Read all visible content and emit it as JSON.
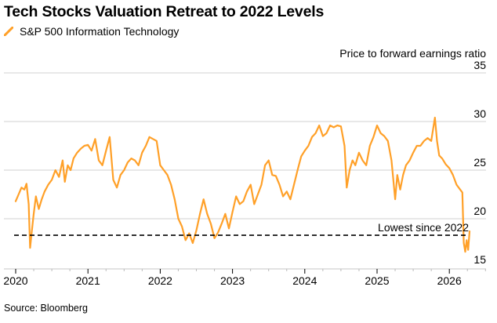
{
  "title": "Tech Stocks Valuation Retreat to 2022 Levels",
  "legend": {
    "label": "S&P 500 Information Technology",
    "color": "#ffa028"
  },
  "source": "Source: Bloomberg",
  "chart_data": {
    "type": "line",
    "title": "Tech Stocks Valuation Retreat to 2022 Levels",
    "xlabel": "",
    "ylabel": "Price to forward earnings ratio",
    "xlim": [
      2020.0,
      2026.55
    ],
    "ylim": [
      15,
      35
    ],
    "x_ticks": [
      2020,
      2021,
      2022,
      2023,
      2024,
      2025,
      2026
    ],
    "x_tick_labels": [
      "2020",
      "2021",
      "2022",
      "2023",
      "2024",
      "2025",
      "2026"
    ],
    "y_ticks": [
      15,
      20,
      25,
      30,
      35
    ],
    "y_tick_labels": [
      "15",
      "20",
      "25",
      "30",
      "35"
    ],
    "grid": true,
    "legend_position": "top-left",
    "annotations": [
      {
        "type": "hline",
        "y": 18.3,
        "style": "dashed",
        "label": "Lowest since 2022"
      }
    ],
    "series": [
      {
        "name": "S&P 500 Information Technology",
        "color": "#ffa028",
        "x": [
          2020.0,
          2020.04,
          2020.08,
          2020.12,
          2020.15,
          2020.18,
          2020.2,
          2020.22,
          2020.25,
          2020.28,
          2020.32,
          2020.36,
          2020.4,
          2020.45,
          2020.5,
          2020.55,
          2020.6,
          2020.65,
          2020.68,
          2020.72,
          2020.76,
          2020.8,
          2020.85,
          2020.9,
          2020.95,
          2021.0,
          2021.05,
          2021.1,
          2021.15,
          2021.2,
          2021.25,
          2021.3,
          2021.35,
          2021.4,
          2021.45,
          2021.5,
          2021.55,
          2021.6,
          2021.65,
          2021.7,
          2021.75,
          2021.8,
          2021.85,
          2021.9,
          2021.95,
          2022.0,
          2022.05,
          2022.1,
          2022.15,
          2022.2,
          2022.25,
          2022.3,
          2022.35,
          2022.4,
          2022.45,
          2022.5,
          2022.55,
          2022.6,
          2022.65,
          2022.7,
          2022.75,
          2022.8,
          2022.85,
          2022.9,
          2022.95,
          2023.0,
          2023.05,
          2023.1,
          2023.15,
          2023.2,
          2023.25,
          2023.3,
          2023.35,
          2023.4,
          2023.45,
          2023.5,
          2023.55,
          2023.6,
          2023.65,
          2023.7,
          2023.75,
          2023.8,
          2023.85,
          2023.9,
          2023.95,
          2024.0,
          2024.05,
          2024.1,
          2024.15,
          2024.2,
          2024.25,
          2024.3,
          2024.35,
          2024.4,
          2024.45,
          2024.5,
          2024.55,
          2024.58,
          2024.62,
          2024.66,
          2024.7,
          2024.75,
          2024.8,
          2024.85,
          2024.9,
          2024.95,
          2025.0,
          2025.05,
          2025.1,
          2025.15,
          2025.2,
          2025.25,
          2025.28,
          2025.32,
          2025.36,
          2025.4,
          2025.45,
          2025.5,
          2025.55,
          2025.6,
          2025.65,
          2025.7,
          2025.75,
          2025.8,
          2025.83,
          2025.86,
          2025.9,
          2025.95,
          2026.0,
          2026.05,
          2026.1,
          2026.15,
          2026.18,
          2026.2,
          2026.22,
          2026.24,
          2026.26,
          2026.28
        ],
        "y": [
          21.8,
          22.5,
          23.2,
          23.0,
          23.6,
          21.5,
          17.0,
          18.5,
          20.5,
          22.3,
          21.0,
          22.0,
          22.8,
          23.5,
          24.0,
          25.0,
          24.3,
          26.0,
          23.8,
          25.5,
          25.0,
          26.2,
          26.8,
          27.2,
          27.5,
          27.6,
          27.0,
          28.2,
          26.0,
          25.5,
          27.0,
          28.4,
          24.0,
          23.2,
          24.5,
          25.0,
          25.8,
          26.2,
          26.0,
          25.5,
          26.8,
          27.5,
          28.4,
          28.2,
          28.0,
          25.5,
          25.0,
          24.5,
          23.5,
          22.0,
          20.0,
          19.2,
          17.8,
          18.5,
          17.5,
          18.8,
          20.5,
          22.0,
          20.5,
          19.5,
          18.0,
          18.6,
          19.5,
          20.5,
          19.0,
          20.7,
          22.3,
          21.5,
          21.8,
          22.8,
          23.5,
          21.5,
          22.5,
          23.5,
          25.5,
          26.0,
          24.5,
          24.4,
          23.5,
          22.3,
          22.8,
          22.0,
          23.5,
          25.0,
          26.4,
          27.0,
          27.5,
          28.4,
          28.8,
          29.6,
          28.5,
          28.8,
          29.6,
          29.4,
          29.6,
          29.5,
          27.5,
          23.2,
          25.0,
          26.0,
          25.5,
          26.8,
          26.0,
          25.5,
          27.5,
          28.4,
          29.6,
          28.8,
          28.5,
          28.0,
          26.0,
          22.0,
          24.5,
          23.0,
          24.5,
          25.5,
          26.0,
          26.8,
          27.5,
          27.5,
          28.0,
          28.3,
          28.0,
          30.4,
          28.0,
          26.5,
          26.2,
          25.6,
          25.2,
          24.5,
          23.5,
          23.0,
          22.7,
          17.5,
          16.6,
          17.8,
          16.8,
          18.7
        ]
      }
    ]
  }
}
